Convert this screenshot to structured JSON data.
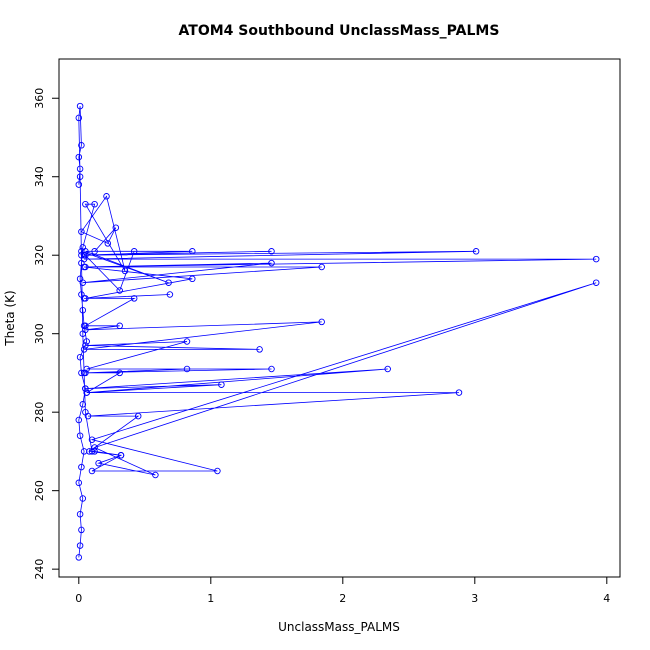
{
  "chart_data": {
    "type": "scatter",
    "title": "ATOM4 Southbound UnclassMass_PALMS",
    "xlabel": "UnclassMass_PALMS",
    "ylabel": "Theta (K)",
    "xlim": [
      -0.15,
      4.1
    ],
    "ylim": [
      238,
      370
    ],
    "x_ticks": [
      0,
      1,
      2,
      3,
      4
    ],
    "y_ticks": [
      240,
      260,
      280,
      300,
      320,
      340,
      360
    ],
    "x_tick_labels": [
      "0",
      "1",
      "2",
      "3",
      "4"
    ],
    "y_tick_labels": [
      "240",
      "260",
      "280",
      "300",
      "320",
      "340",
      "360"
    ],
    "grid": false,
    "color": "#0000ff",
    "marker": "open-circle",
    "series": [
      {
        "x": [
          0,
          0.01,
          0.02,
          0.01,
          0.03,
          0,
          0.02,
          0.04,
          0.01,
          0,
          0.03,
          0.05,
          0.02,
          0.01,
          0.06,
          0.04,
          0.03,
          0.02,
          0.01,
          0.02,
          0.03,
          0.12,
          0.05,
          0.35,
          0.21,
          0.02,
          0.22,
          0.28,
          0.12,
          0.42,
          0.31,
          0.02,
          0.68,
          0.05,
          0.86,
          0.04,
          1.46,
          0.05,
          3.01,
          0.04,
          3.92,
          0.05,
          1.84,
          0.03,
          1.46,
          0.04,
          0.86,
          0.05,
          0.69,
          0.04,
          0.42,
          0.05,
          0.31,
          0.05,
          1.84,
          0.04,
          1.37,
          0.05,
          0.82,
          0.06,
          1.46,
          0.05,
          0.82,
          0.04,
          0.31,
          0.06,
          2.34,
          0.05,
          1.08,
          0.06,
          2.88,
          0.07,
          0.45,
          0.08,
          0.32,
          0.1,
          1.05,
          0.1,
          3.92,
          0.12,
          0.58,
          0.15,
          0.32,
          0.12,
          0.1,
          0.05,
          0.03,
          0.02,
          0.01,
          0,
          0.01,
          0.02,
          0,
          0.01,
          0
        ],
        "y": [
          243,
          246,
          250,
          254,
          258,
          262,
          266,
          270,
          274,
          278,
          282,
          286,
          290,
          294,
          298,
          302,
          306,
          310,
          314,
          318,
          322,
          333,
          333,
          316,
          335,
          326,
          323,
          327,
          321,
          321,
          311,
          321,
          313,
          321,
          321,
          320,
          321,
          320,
          321,
          319,
          319,
          317,
          317,
          313,
          318,
          317,
          314,
          309,
          310,
          309,
          309,
          302,
          302,
          301,
          303,
          296,
          296,
          297,
          298,
          291,
          291,
          290,
          291,
          290,
          290,
          285,
          291,
          286,
          287,
          285,
          285,
          279,
          279,
          270,
          269,
          265,
          265,
          273,
          313,
          271,
          264,
          267,
          269,
          270,
          270,
          280,
          300,
          320,
          340,
          355,
          358,
          348,
          345,
          342,
          338
        ]
      }
    ]
  }
}
